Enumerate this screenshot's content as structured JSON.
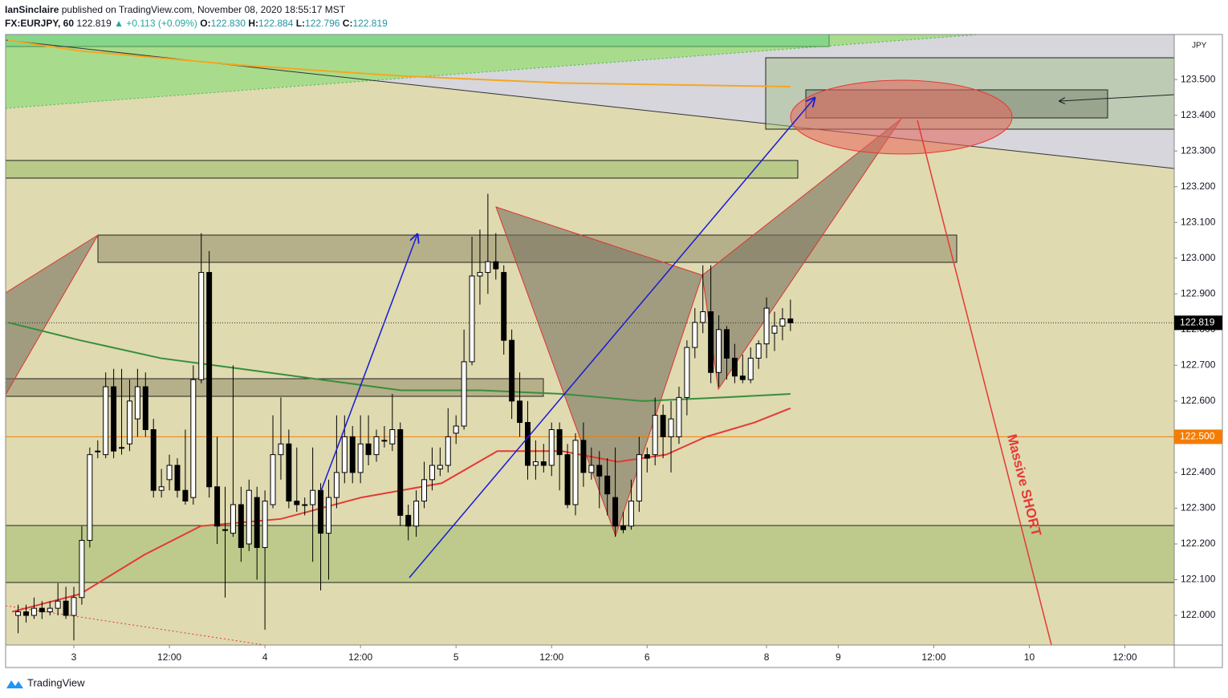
{
  "header": {
    "author": "IanSinclaire",
    "published": "published on TradingView.com, November 08, 2020 18:55:17 MST",
    "footer": "TradingView"
  },
  "chart_data": {
    "type": "candlestick",
    "symbol": "FX:EURJPY, 60",
    "last": 122.819,
    "change_arrow": "▲",
    "change": {
      "value": 0.113,
      "label": "+0.113"
    },
    "change_pct": {
      "value": 0.09,
      "label": "(+0.09%)"
    },
    "legend_ohlc": [
      {
        "name": "O:",
        "value": 122.83,
        "label": "122.830"
      },
      {
        "name": "H:",
        "value": 122.884,
        "label": "122.884"
      },
      {
        "name": "L:",
        "value": 122.796,
        "label": "122.796"
      },
      {
        "name": "C:",
        "value": 122.819,
        "label": "122.819"
      }
    ],
    "currency": "JPY",
    "annotations": [
      "Massive SHORT"
    ],
    "last_price_label": {
      "value": 122.819,
      "label": "122.819"
    },
    "hline": {
      "value": 122.5,
      "label": "122.500",
      "color": "#f57c00"
    },
    "xlim": [
      -8.57,
      138.2
    ],
    "ylim": [
      121.917,
      123.626
    ],
    "xticks": [
      {
        "value": 0,
        "label": "3"
      },
      {
        "value": 12,
        "label": "12:00"
      },
      {
        "value": 24,
        "label": "4"
      },
      {
        "value": 36,
        "label": "12:00"
      },
      {
        "value": 48,
        "label": "5"
      },
      {
        "value": 60,
        "label": "12:00"
      },
      {
        "value": 72,
        "label": "6"
      },
      {
        "value": 87,
        "label": "8"
      },
      {
        "value": 96,
        "label": "9"
      },
      {
        "value": 108,
        "label": "12:00"
      },
      {
        "value": 120,
        "label": "10"
      },
      {
        "value": 132,
        "label": "12:00"
      }
    ],
    "yticks": [
      {
        "value": 122.0,
        "label": "122.000"
      },
      {
        "value": 122.1,
        "label": "122.100"
      },
      {
        "value": 122.2,
        "label": "122.200"
      },
      {
        "value": 122.3,
        "label": "122.300"
      },
      {
        "value": 122.4,
        "label": "122.400"
      },
      {
        "value": 122.5,
        "label": "122.500"
      },
      {
        "value": 122.6,
        "label": "122.600"
      },
      {
        "value": 122.7,
        "label": "122.700"
      },
      {
        "value": 122.8,
        "label": "122.800"
      },
      {
        "value": 122.9,
        "label": "122.900"
      },
      {
        "value": 123.0,
        "label": "123.000"
      },
      {
        "value": 123.1,
        "label": "123.100"
      },
      {
        "value": 123.2,
        "label": "123.200"
      },
      {
        "value": 123.3,
        "label": "123.300"
      },
      {
        "value": 123.4,
        "label": "123.400"
      },
      {
        "value": 123.5,
        "label": "123.500"
      }
    ],
    "x": [
      -7,
      -6,
      -5,
      -4,
      -3,
      -2,
      -1,
      0,
      1,
      2,
      3,
      4,
      5,
      6,
      7,
      8,
      9,
      10,
      11,
      12,
      13,
      14,
      15,
      16,
      17,
      18,
      19,
      20,
      21,
      22,
      23,
      24,
      25,
      26,
      27,
      28,
      29,
      30,
      31,
      32,
      33,
      34,
      35,
      36,
      37,
      38,
      39,
      40,
      41,
      42,
      43,
      44,
      45,
      46,
      47,
      48,
      49,
      50,
      51,
      52,
      53,
      54,
      55,
      56,
      57,
      58,
      59,
      60,
      61,
      62,
      63,
      64,
      65,
      66,
      67,
      68,
      69,
      70,
      71,
      72,
      73,
      74,
      75,
      76,
      77,
      78,
      79,
      80,
      81,
      82,
      83,
      84,
      85,
      86,
      87,
      88,
      89,
      90
    ],
    "open": [
      122.0,
      122.01,
      122.0,
      122.02,
      122.01,
      122.02,
      122.04,
      122.0,
      122.05,
      122.21,
      122.46,
      122.45,
      122.64,
      122.47,
      122.48,
      122.55,
      122.64,
      122.52,
      122.35,
      122.38,
      122.42,
      122.35,
      122.33,
      122.66,
      122.96,
      122.36,
      122.24,
      122.23,
      122.31,
      122.2,
      122.33,
      122.19,
      122.31,
      122.45,
      122.48,
      122.32,
      122.31,
      122.31,
      122.35,
      122.23,
      122.33,
      122.4,
      122.5,
      122.4,
      122.48,
      122.45,
      122.49,
      122.48,
      122.52,
      122.28,
      122.25,
      122.32,
      122.38,
      122.41,
      122.42,
      122.51,
      122.53,
      122.71,
      122.95,
      122.96,
      122.99,
      122.96,
      122.77,
      122.6,
      122.54,
      122.42,
      122.43,
      122.42,
      122.52,
      122.45,
      122.31,
      122.49,
      122.4,
      122.42,
      122.39,
      122.33,
      122.25,
      122.25,
      122.32,
      122.45,
      122.45,
      122.56,
      122.5,
      122.5,
      122.61,
      122.75,
      122.82,
      122.85,
      122.68,
      122.8,
      122.72,
      122.67,
      122.66,
      122.72,
      122.76,
      122.79,
      122.81,
      122.83
    ],
    "high": [
      122.03,
      122.03,
      122.05,
      122.04,
      122.04,
      122.09,
      122.08,
      122.08,
      122.25,
      122.47,
      122.49,
      122.68,
      122.69,
      122.69,
      122.66,
      122.69,
      122.68,
      122.55,
      122.41,
      122.45,
      122.44,
      122.52,
      122.7,
      123.07,
      123.02,
      122.5,
      122.36,
      122.7,
      122.36,
      122.38,
      122.36,
      122.35,
      122.56,
      122.61,
      122.52,
      122.47,
      122.33,
      122.47,
      122.37,
      122.38,
      122.56,
      122.56,
      122.53,
      122.56,
      122.56,
      122.52,
      122.53,
      122.62,
      122.54,
      122.31,
      122.35,
      122.43,
      122.47,
      122.47,
      122.58,
      122.56,
      122.8,
      123.06,
      123.08,
      123.18,
      123.07,
      122.98,
      122.8,
      122.68,
      122.6,
      122.49,
      122.48,
      122.54,
      122.54,
      122.48,
      122.51,
      122.54,
      122.47,
      122.46,
      122.44,
      122.47,
      122.29,
      122.38,
      122.5,
      122.47,
      122.61,
      122.59,
      122.6,
      122.64,
      122.77,
      122.86,
      122.98,
      122.98,
      122.84,
      122.81,
      122.76,
      122.73,
      122.75,
      122.77,
      122.89,
      122.85,
      122.86,
      122.884
    ],
    "low": [
      121.95,
      121.98,
      121.99,
      121.99,
      122.0,
      122.0,
      121.99,
      121.93,
      122.03,
      122.19,
      122.44,
      122.44,
      122.44,
      122.45,
      122.46,
      122.5,
      122.5,
      122.33,
      122.33,
      122.35,
      122.33,
      122.31,
      122.31,
      122.65,
      122.33,
      122.2,
      122.05,
      122.22,
      122.15,
      122.18,
      122.1,
      121.96,
      122.3,
      122.38,
      122.3,
      122.29,
      122.28,
      122.15,
      122.07,
      122.1,
      122.3,
      122.37,
      122.37,
      122.37,
      122.42,
      122.43,
      122.47,
      122.46,
      122.25,
      122.21,
      122.22,
      122.3,
      122.35,
      122.39,
      122.4,
      122.48,
      122.52,
      122.7,
      122.87,
      122.9,
      122.94,
      122.73,
      122.55,
      122.5,
      122.38,
      122.38,
      122.4,
      122.39,
      122.35,
      122.3,
      122.28,
      122.36,
      122.38,
      122.3,
      122.28,
      122.22,
      122.23,
      122.24,
      122.29,
      122.4,
      122.42,
      122.44,
      122.4,
      122.48,
      122.56,
      122.72,
      122.79,
      122.65,
      122.64,
      122.66,
      122.65,
      122.65,
      122.65,
      122.69,
      122.72,
      122.74,
      122.77,
      122.796
    ],
    "close": [
      122.01,
      122.0,
      122.02,
      122.01,
      122.02,
      122.04,
      122.0,
      122.05,
      122.21,
      122.45,
      122.46,
      122.64,
      122.46,
      122.47,
      122.6,
      122.64,
      122.52,
      122.35,
      122.36,
      122.42,
      122.35,
      122.32,
      122.66,
      122.96,
      122.36,
      122.25,
      122.24,
      122.31,
      122.19,
      122.35,
      122.19,
      122.32,
      122.45,
      122.48,
      122.32,
      122.31,
      122.31,
      122.35,
      122.23,
      122.33,
      122.4,
      122.5,
      122.4,
      122.48,
      122.45,
      122.5,
      122.49,
      122.52,
      122.28,
      122.25,
      122.32,
      122.38,
      122.42,
      122.42,
      122.5,
      122.53,
      122.71,
      122.95,
      122.96,
      122.99,
      122.97,
      122.77,
      122.6,
      122.54,
      122.42,
      122.43,
      122.42,
      122.52,
      122.45,
      122.31,
      122.49,
      122.4,
      122.42,
      122.39,
      122.34,
      122.25,
      122.24,
      122.32,
      122.45,
      122.44,
      122.56,
      122.5,
      122.55,
      122.61,
      122.75,
      122.82,
      122.85,
      122.68,
      122.8,
      122.72,
      122.67,
      122.66,
      122.72,
      122.76,
      122.86,
      122.81,
      122.83,
      122.819
    ],
    "up_color": "#ffffff",
    "down_color": "#000000",
    "moving_averages": [
      {
        "color": "#e53935",
        "x": [
          -7.76,
          0.81,
          8.87,
          15.93,
          26.0,
          36.1,
          46.2,
          53.2,
          61.3,
          68.3,
          74.4,
          79.4,
          85.5,
          90
        ],
        "values": [
          122.01,
          122.06,
          122.17,
          122.25,
          122.27,
          122.33,
          122.37,
          122.46,
          122.46,
          122.43,
          122.45,
          122.5,
          122.54,
          122.58
        ]
      },
      {
        "color": "#388e3c",
        "x": [
          -8.3,
          0.8,
          10.9,
          21,
          31,
          41.1,
          51.2,
          61.3,
          71.4,
          81.5,
          90
        ],
        "values": [
          122.82,
          122.77,
          122.72,
          122.69,
          122.66,
          122.63,
          122.63,
          122.62,
          122.6,
          122.61,
          122.62
        ]
      },
      {
        "color": "#f5a623",
        "x": [
          -8.3,
          0.8,
          21,
          41.1,
          61.3,
          90
        ],
        "values": [
          123.61,
          123.58,
          123.54,
          123.51,
          123.49,
          123.48
        ]
      }
    ]
  }
}
